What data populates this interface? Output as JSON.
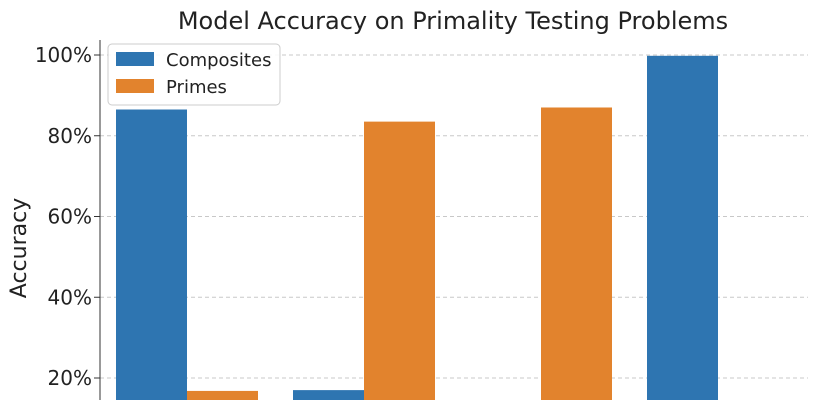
{
  "chart_data": {
    "type": "bar",
    "title": "Model Accuracy on Primality Testing Problems",
    "xlabel": "",
    "ylabel": "Accuracy",
    "ylim": [
      0,
      104
    ],
    "yticks": [
      "20%",
      "40%",
      "60%",
      "80%",
      "100%"
    ],
    "grid": true,
    "legend_position": "top-left",
    "categories": [
      "",
      "",
      "",
      ""
    ],
    "series": [
      {
        "name": "Composites",
        "color": "#2e75b1",
        "values": [
          86.5,
          17.0,
          0,
          99.8
        ]
      },
      {
        "name": "Primes",
        "color": "#e2832d",
        "values": [
          16.8,
          83.5,
          87.0,
          0
        ]
      }
    ]
  }
}
